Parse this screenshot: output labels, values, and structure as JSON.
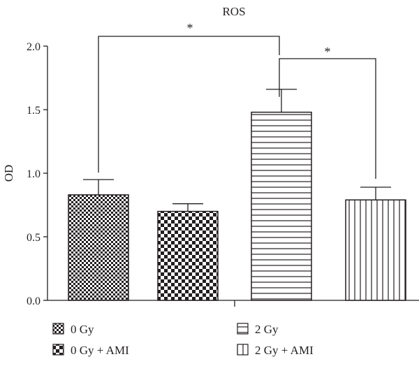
{
  "chart_data": {
    "type": "bar",
    "title": "ROS",
    "xlabel": "",
    "ylabel": "OD",
    "ylim": [
      0,
      2.0
    ],
    "yticks": [
      "0.0",
      "0.5",
      "1.0",
      "1.5",
      "2.0"
    ],
    "categories": [
      "0 Gy",
      "0 Gy + AMI",
      "2 Gy",
      "2 Gy + AMI"
    ],
    "values": [
      0.83,
      0.7,
      1.48,
      0.79
    ],
    "errors": [
      0.12,
      0.06,
      0.18,
      0.1
    ],
    "patterns": [
      "fine-checker",
      "checker",
      "horizontal-lines",
      "vertical-lines"
    ],
    "legend": [
      {
        "label": "0 Gy",
        "pattern": "fine-checker"
      },
      {
        "label": "2 Gy",
        "pattern": "horizontal-lines"
      },
      {
        "label": "0 Gy + AMI",
        "pattern": "checker"
      },
      {
        "label": "2 Gy + AMI",
        "pattern": "vertical-lines"
      }
    ],
    "legend_position": "bottom",
    "grid": false,
    "significance": [
      {
        "from": 0,
        "to": 2,
        "label": "*"
      },
      {
        "from": 2,
        "to": 3,
        "label": "*"
      }
    ],
    "colors": {
      "ink": "#231f20",
      "background": "#ffffff"
    }
  }
}
